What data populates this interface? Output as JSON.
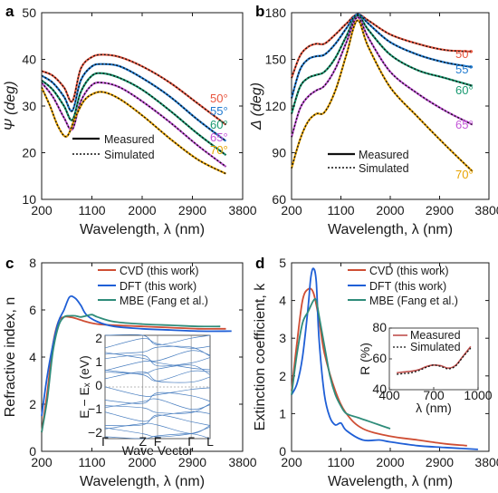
{
  "panels": {
    "a": {
      "label": "a"
    },
    "b": {
      "label": "b"
    },
    "c": {
      "label": "c"
    },
    "d": {
      "label": "d"
    }
  },
  "colors": {
    "50": "#e8553e",
    "55": "#1f7ad0",
    "60": "#1a9a72",
    "65": "#c455d8",
    "70": "#e8a300",
    "CVD": "#cf4e34",
    "DFT": "#1f5fd6",
    "MBE": "#2f8c7a",
    "Measured": "#c0504d"
  },
  "chart_data": [
    {
      "id": "a",
      "type": "line",
      "xlabel": "Wavelength, λ (nm)",
      "ylabel": "Ψ (deg)",
      "xlim": [
        200,
        3800
      ],
      "ylim": [
        10,
        50
      ],
      "xticks": [
        200,
        1100,
        2000,
        2900,
        3800
      ],
      "yticks": [
        10,
        20,
        30,
        40,
        50
      ],
      "legend": [
        "Measured",
        "Simulated"
      ],
      "legend_position": "lower-left",
      "angles": [
        "50°",
        "55°",
        "60°",
        "65°",
        "70°"
      ],
      "series": [
        {
          "name": "50°",
          "x": [
            200,
            400,
            600,
            750,
            900,
            1100,
            1300,
            1600,
            2000,
            2500,
            3000,
            3500
          ],
          "y": [
            37.5,
            36.5,
            34,
            31,
            38,
            40.5,
            41,
            40.5,
            38.5,
            35,
            30.5,
            26
          ]
        },
        {
          "name": "55°",
          "x": [
            200,
            400,
            600,
            750,
            900,
            1100,
            1300,
            1600,
            2000,
            2500,
            3000,
            3500
          ],
          "y": [
            36.5,
            35,
            32,
            29,
            35.5,
            38.5,
            39,
            38.5,
            36,
            32,
            27,
            22.5
          ]
        },
        {
          "name": "60°",
          "x": [
            200,
            400,
            600,
            750,
            900,
            1100,
            1300,
            1600,
            2000,
            2500,
            3000,
            3500
          ],
          "y": [
            35.5,
            33.5,
            30,
            27,
            33,
            36.5,
            37,
            36,
            33.5,
            29,
            24,
            19.5
          ]
        },
        {
          "name": "65°",
          "x": [
            200,
            400,
            600,
            750,
            900,
            1100,
            1300,
            1600,
            2000,
            2500,
            3000,
            3500
          ],
          "y": [
            35,
            32,
            27.5,
            25,
            31,
            34.5,
            35,
            34,
            31,
            26.5,
            21.5,
            17
          ]
        },
        {
          "name": "70°",
          "x": [
            200,
            350,
            500,
            650,
            800,
            950,
            1100,
            1300,
            1600,
            2000,
            2500,
            3000,
            3500
          ],
          "y": [
            34,
            30,
            25.5,
            23.5,
            27.5,
            31,
            32.5,
            33,
            31.5,
            28,
            23,
            18.5,
            15.5
          ]
        }
      ]
    },
    {
      "id": "b",
      "type": "line",
      "xlabel": "Wavelength, λ (nm)",
      "ylabel": "Δ (deg)",
      "xlim": [
        200,
        3800
      ],
      "ylim": [
        60,
        180
      ],
      "xticks": [
        200,
        1100,
        2000,
        2900,
        3800
      ],
      "yticks": [
        60,
        90,
        120,
        150,
        180
      ],
      "legend": [
        "Measured",
        "Simulated"
      ],
      "legend_position": "lower-right",
      "angles": [
        "50°",
        "55°",
        "60°",
        "65°",
        "70°"
      ],
      "series": [
        {
          "name": "50°",
          "x": [
            200,
            350,
            500,
            650,
            800,
            1000,
            1200,
            1400,
            1600,
            2000,
            2500,
            3000,
            3500
          ],
          "y": [
            138,
            152,
            158,
            160,
            160,
            166,
            173,
            179,
            175,
            166,
            160,
            156,
            155
          ]
        },
        {
          "name": "55°",
          "x": [
            200,
            350,
            500,
            650,
            800,
            1000,
            1200,
            1400,
            1600,
            2000,
            2500,
            3000,
            3500
          ],
          "y": [
            125,
            143,
            150,
            152,
            153,
            160,
            170,
            179,
            173,
            161,
            153,
            148,
            145
          ]
        },
        {
          "name": "60°",
          "x": [
            200,
            350,
            500,
            650,
            800,
            1000,
            1200,
            1400,
            1600,
            2000,
            2500,
            3000,
            3500
          ],
          "y": [
            115,
            132,
            138,
            140,
            142,
            151,
            165,
            178,
            169,
            153,
            143,
            138,
            133
          ]
        },
        {
          "name": "65°",
          "x": [
            200,
            350,
            500,
            650,
            800,
            1000,
            1200,
            1400,
            1600,
            2000,
            2500,
            3000,
            3500
          ],
          "y": [
            100,
            118,
            126,
            130,
            133,
            144,
            161,
            177,
            164,
            142,
            128,
            117,
            108
          ]
        },
        {
          "name": "70°",
          "x": [
            200,
            350,
            500,
            650,
            800,
            1000,
            1200,
            1400,
            1600,
            2000,
            2500,
            3000,
            3500
          ],
          "y": [
            80,
            98,
            110,
            115,
            116,
            130,
            153,
            175,
            158,
            132,
            113,
            95,
            78
          ]
        }
      ]
    },
    {
      "id": "c",
      "type": "line",
      "xlabel": "Wavelength, λ (nm)",
      "ylabel": "Refractive index, n",
      "xlim": [
        200,
        3800
      ],
      "ylim": [
        0,
        8
      ],
      "xticks": [
        200,
        1100,
        2000,
        2900,
        3800
      ],
      "yticks": [
        0,
        2,
        4,
        6,
        8
      ],
      "legend_position": "top-right",
      "series": [
        {
          "name": "CVD (this work)",
          "x": [
            200,
            300,
            400,
            500,
            600,
            700,
            800,
            1000,
            1200,
            1500,
            2000,
            2500,
            3000,
            3500
          ],
          "y": [
            0.8,
            2.5,
            4.5,
            5.5,
            5.7,
            5.7,
            5.65,
            5.5,
            5.4,
            5.35,
            5.3,
            5.25,
            5.2,
            5.2
          ]
        },
        {
          "name": "DFT (this work)",
          "x": [
            200,
            300,
            400,
            500,
            600,
            700,
            800,
            900,
            1000,
            1200,
            1500,
            2000,
            2500,
            3000,
            3600
          ],
          "y": [
            1.5,
            3.2,
            4.5,
            5.5,
            6.0,
            6.55,
            6.5,
            6.2,
            5.8,
            5.5,
            5.3,
            5.2,
            5.15,
            5.1,
            5.1
          ]
        },
        {
          "name": "MBE (Fang et al.)",
          "x": [
            200,
            300,
            400,
            500,
            600,
            700,
            800,
            900,
            1000,
            1100,
            1200,
            1500,
            2000,
            2500,
            3000,
            3400
          ],
          "y": [
            0.8,
            2.2,
            4.2,
            5.3,
            5.7,
            5.75,
            5.75,
            5.7,
            5.75,
            5.8,
            5.7,
            5.5,
            5.4,
            5.35,
            5.3,
            5.3
          ]
        }
      ],
      "inset": {
        "type": "band-structure",
        "ylabel": "E − Eₓ (eV)",
        "xlabel": "Wave Vector",
        "yticks": [
          "2",
          "1",
          "0",
          "−1",
          "−2"
        ],
        "kpoints": [
          "Γ",
          "Z",
          "F",
          "Γ",
          "L"
        ]
      }
    },
    {
      "id": "d",
      "type": "line",
      "xlabel": "Wavelength, λ (nm)",
      "ylabel": "Extinction coefficient, k",
      "xlim": [
        200,
        3800
      ],
      "ylim": [
        0,
        5
      ],
      "xticks": [
        200,
        1100,
        2000,
        2900,
        3800
      ],
      "yticks": [
        0,
        1,
        2,
        3,
        4,
        5
      ],
      "legend_position": "top-right",
      "series": [
        {
          "name": "CVD (this work)",
          "x": [
            200,
            300,
            400,
            500,
            600,
            700,
            800,
            1000,
            1200,
            1500,
            2000,
            2500,
            3000,
            3400
          ],
          "y": [
            1.6,
            2.9,
            4.0,
            4.3,
            4.2,
            3.5,
            2.6,
            1.6,
            1.0,
            0.6,
            0.4,
            0.3,
            0.2,
            0.15
          ]
        },
        {
          "name": "DFT (this work)",
          "x": [
            200,
            300,
            400,
            500,
            550,
            600,
            650,
            700,
            800,
            900,
            1000,
            1100,
            1200,
            1500,
            1800,
            2000,
            2500,
            3000,
            3600
          ],
          "y": [
            1.5,
            1.8,
            2.5,
            3.8,
            4.6,
            4.85,
            4.5,
            3.0,
            1.5,
            0.9,
            0.7,
            0.75,
            0.55,
            0.3,
            0.3,
            0.25,
            0.15,
            0.1,
            0.05
          ]
        },
        {
          "name": "MBE (Fang et al.)",
          "x": [
            200,
            300,
            400,
            500,
            600,
            650,
            700,
            800,
            900,
            1000,
            1100,
            1200,
            1400,
            1600,
            1800,
            2000
          ],
          "y": [
            1.5,
            2.6,
            3.4,
            3.7,
            4.0,
            4.0,
            3.6,
            2.8,
            2.0,
            1.5,
            1.2,
            1.0,
            0.9,
            0.8,
            0.7,
            0.6
          ]
        }
      ],
      "inset": {
        "type": "line",
        "xlabel": "λ (nm)",
        "ylabel": "R (%)",
        "xlim": [
          400,
          1000
        ],
        "ylim": [
          40,
          80
        ],
        "xticks": [
          400,
          700,
          1000
        ],
        "yticks": [
          40,
          60,
          80
        ],
        "legend": [
          "Measured",
          "Simulated"
        ],
        "series": [
          {
            "name": "Measured",
            "x": [
              450,
              500,
              550,
              600,
              650,
              700,
              750,
              800,
              850,
              900,
              950
            ],
            "y": [
              51,
              51.5,
              52,
              53,
              55,
              56,
              55.5,
              54,
              56,
              62,
              68
            ]
          },
          {
            "name": "Simulated",
            "x": [
              450,
              500,
              550,
              600,
              650,
              700,
              750,
              800,
              850,
              900,
              950
            ],
            "y": [
              50,
              50.5,
              51,
              52.5,
              54.5,
              56,
              55,
              53.5,
              55.5,
              61.5,
              67
            ]
          }
        ]
      }
    }
  ]
}
